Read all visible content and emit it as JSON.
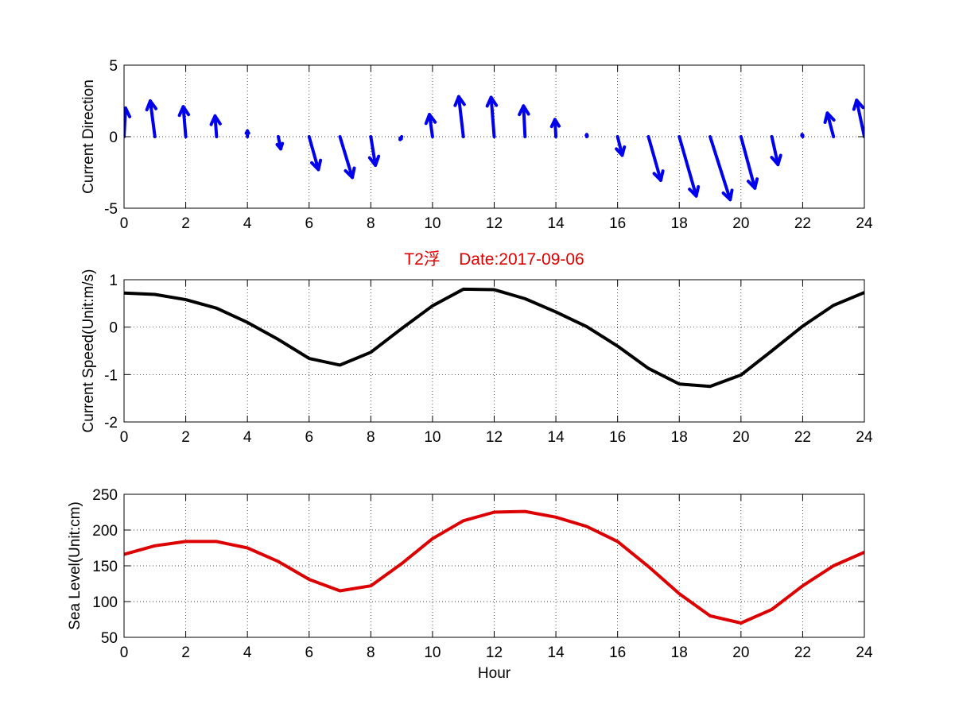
{
  "chart_data": [
    {
      "type": "quiver",
      "title": "",
      "xlabel": "",
      "ylabel": "Current Direction",
      "xlim": [
        0,
        24
      ],
      "ylim": [
        -5,
        5
      ],
      "xticks": [
        0,
        2,
        4,
        6,
        8,
        10,
        12,
        14,
        16,
        18,
        20,
        22,
        24
      ],
      "yticks": [
        -5,
        0,
        5
      ],
      "grid": true,
      "color": "#0000ee",
      "series": [
        {
          "x": [
            0,
            1,
            2,
            3,
            4,
            5,
            6,
            7,
            8,
            9,
            10,
            11,
            12,
            13,
            14,
            15,
            16,
            17,
            18,
            19,
            20,
            21,
            22,
            23,
            24
          ],
          "u": [
            0.05,
            -0.15,
            -0.08,
            -0.05,
            0.0,
            0.08,
            0.3,
            0.4,
            0.15,
            -0.05,
            -0.1,
            -0.15,
            -0.1,
            -0.05,
            -0.03,
            0.0,
            0.15,
            0.4,
            0.55,
            0.65,
            0.45,
            0.2,
            -0.02,
            -0.2,
            -0.25
          ],
          "v": [
            2.0,
            2.5,
            2.1,
            1.45,
            0.4,
            -0.85,
            -2.3,
            -2.85,
            -2.0,
            -0.2,
            1.55,
            2.8,
            2.75,
            2.15,
            1.2,
            0.15,
            -1.3,
            -3.05,
            -4.15,
            -4.4,
            -3.6,
            -1.95,
            0.15,
            1.65,
            2.55
          ]
        }
      ]
    },
    {
      "type": "line",
      "title": "T2浮    Date:2017-09-06",
      "xlabel": "",
      "ylabel": "Current Speed(Unit:m/s)",
      "xlim": [
        0,
        24
      ],
      "ylim": [
        -2,
        1
      ],
      "xticks": [
        0,
        2,
        4,
        6,
        8,
        10,
        12,
        14,
        16,
        18,
        20,
        22,
        24
      ],
      "yticks": [
        -2,
        -1,
        0,
        1
      ],
      "grid": true,
      "color": "#000000",
      "x": [
        0,
        1,
        2,
        3,
        4,
        5,
        6,
        7,
        8,
        9,
        10,
        11,
        12,
        13,
        14,
        15,
        16,
        17,
        18,
        19,
        20,
        21,
        22,
        23,
        24
      ],
      "series": [
        {
          "values": [
            0.72,
            0.69,
            0.58,
            0.4,
            0.1,
            -0.26,
            -0.66,
            -0.8,
            -0.53,
            -0.03,
            0.45,
            0.8,
            0.79,
            0.6,
            0.32,
            0.01,
            -0.4,
            -0.87,
            -1.2,
            -1.25,
            -1.01,
            -0.5,
            0.02,
            0.46,
            0.73
          ]
        }
      ]
    },
    {
      "type": "line",
      "title": "",
      "xlabel": "Hour",
      "ylabel": "Sea Level(Unit:cm)",
      "xlim": [
        0,
        24
      ],
      "ylim": [
        50,
        250
      ],
      "xticks": [
        0,
        2,
        4,
        6,
        8,
        10,
        12,
        14,
        16,
        18,
        20,
        22,
        24
      ],
      "yticks": [
        50,
        100,
        150,
        200,
        250
      ],
      "grid": true,
      "color": "#dd0000",
      "x": [
        0,
        1,
        2,
        3,
        4,
        5,
        6,
        7,
        8,
        9,
        10,
        11,
        12,
        13,
        14,
        15,
        16,
        17,
        18,
        19,
        20,
        21,
        22,
        23,
        24
      ],
      "series": [
        {
          "values": [
            166,
            178,
            184,
            184,
            175,
            156,
            131,
            115,
            122,
            153,
            188,
            213,
            225,
            226,
            218,
            205,
            184,
            149,
            111,
            80,
            70,
            89,
            122,
            150,
            169
          ]
        }
      ]
    }
  ]
}
